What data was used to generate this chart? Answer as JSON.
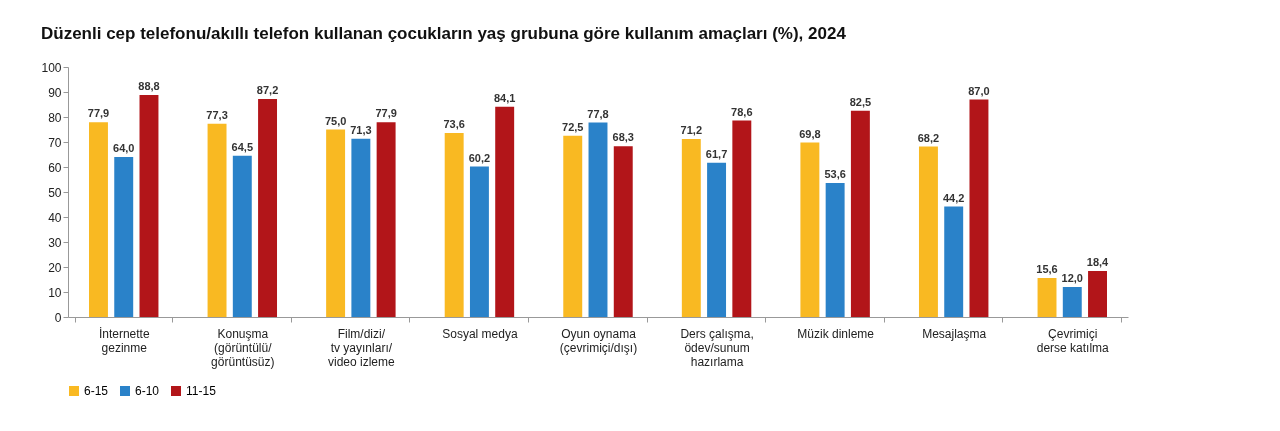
{
  "chart_data": {
    "type": "bar",
    "title": "Düzenli cep telefonu/akıllı telefon kullanan çocukların yaş grubuna göre kullanım amaçları (%), 2024",
    "categories": [
      "İnternette\ngezinme",
      "Konuşma\n(görüntülü/\ngörüntüsüz)",
      "Film/dizi/\ntv yayınları/\nvideo izleme",
      "Sosyal medya",
      "Oyun oynama\n(çevrimiçi/dışı)",
      "Ders çalışma,\nödev/sunum\nhazırlama",
      "Müzik dinleme",
      "Mesajlaşma",
      "Çevrimiçi\nderse katılma"
    ],
    "series": [
      {
        "name": "6-15",
        "color": "#f9b922",
        "values": [
          77.9,
          77.3,
          75.0,
          73.6,
          72.5,
          71.2,
          69.8,
          68.2,
          15.6
        ],
        "value_labels": [
          "77,9",
          "77,3",
          "75,0",
          "73,6",
          "72,5",
          "71,2",
          "69,8",
          "68,2",
          "15,6"
        ]
      },
      {
        "name": "6-10",
        "color": "#2a82c9",
        "values": [
          64.0,
          64.5,
          71.3,
          60.2,
          77.8,
          61.7,
          53.6,
          44.2,
          12.0
        ],
        "value_labels": [
          "64,0",
          "64,5",
          "71,3",
          "60,2",
          "77,8",
          "61,7",
          "53,6",
          "44,2",
          "12,0"
        ]
      },
      {
        "name": "11-15",
        "color": "#b21519",
        "values": [
          88.8,
          87.2,
          77.9,
          84.1,
          68.3,
          78.6,
          82.5,
          87.0,
          18.4
        ],
        "value_labels": [
          "88,8",
          "87,2",
          "77,9",
          "84,1",
          "68,3",
          "78,6",
          "82,5",
          "87,0",
          "18,4"
        ]
      }
    ],
    "ylim": [
      0,
      100
    ],
    "yticks": [
      0,
      10,
      20,
      30,
      40,
      50,
      60,
      70,
      80,
      90,
      100
    ],
    "grid": false,
    "legend": "bottom"
  }
}
